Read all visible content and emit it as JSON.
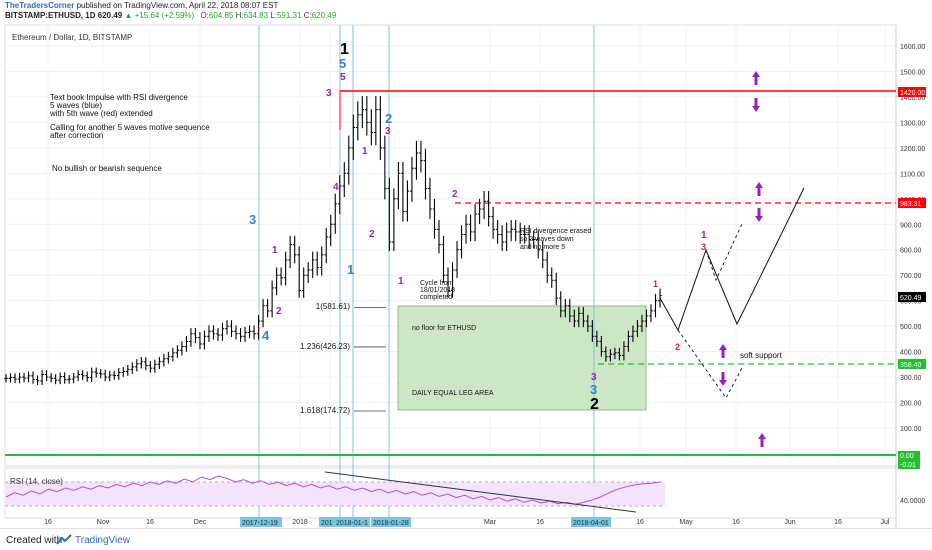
{
  "header": {
    "publisher": "TheTradersCorner",
    "published_text": "published on TradingView.com, April 22, 2018 08:07 EST",
    "symbol": "BITSTAMP:ETHUSD, 1D",
    "price": "620.49",
    "change": "▲ +15.64 (+2.59%)",
    "o_label": "O:",
    "o": "604.85",
    "h_label": "H:",
    "h": "634.83",
    "l_label": "L:",
    "l": "591.31",
    "c_label": "C:",
    "c": "620.49"
  },
  "chart_title": "Ethereum / Dollar, 1D, BITSTAMP",
  "colors": {
    "bars": "#000000",
    "red_line": "#ff0000",
    "green_line": "#00c000",
    "green_zone": "#cde6c5",
    "wave_blue": "#3d7fd1",
    "wave_purple": "#9a1fc0",
    "wave_red": "#e02020",
    "rsi_line": "#b04fd8",
    "rsi_band": "#f3e3fb",
    "vline": "#7cc4e0",
    "arrow": "#9a1fc0"
  },
  "chart_data": {
    "type": "ohlc",
    "title": "Ethereum / Dollar, 1D, BITSTAMP",
    "ylim": [
      0,
      1650
    ],
    "y_ticks": [
      100,
      200,
      300,
      400,
      500,
      600,
      700,
      800,
      900,
      1000,
      1100,
      1200,
      1300,
      1400,
      1500,
      1600
    ],
    "y_tick_labels": [
      "100.00",
      "200.00",
      "300.00",
      "400.00",
      "500.00",
      "600.00",
      "700.00",
      "800.00",
      "900.00",
      "1000.00",
      "1100.00",
      "1200.00",
      "1300.00",
      "1400.00",
      "1500.00",
      "1600.00"
    ],
    "x_labels": [
      "16",
      "Nov",
      "16",
      "Dec",
      "2018",
      "16",
      "Mar",
      "16",
      "16",
      "May",
      "16",
      "Jun",
      "16",
      "Jul"
    ],
    "x_highlight_labels": [
      "2017-12-19",
      "201",
      "2018-01-1",
      "2018-01-28",
      "2018-04-01"
    ],
    "price_series": [
      295,
      298,
      292,
      300,
      296,
      305,
      290,
      285,
      310,
      300,
      295,
      288,
      302,
      290,
      292,
      300,
      310,
      305,
      298,
      320,
      315,
      312,
      300,
      308,
      306,
      318,
      322,
      330,
      340,
      352,
      360,
      345,
      335,
      350,
      360,
      372,
      380,
      395,
      405,
      420,
      440,
      470,
      455,
      430,
      460,
      480,
      470,
      465,
      490,
      500,
      480,
      470,
      460,
      475,
      480,
      470,
      520,
      580,
      560,
      650,
      700,
      690,
      760,
      820,
      780,
      640,
      700,
      720,
      760,
      730,
      780,
      850,
      900,
      980,
      1050,
      1100,
      1200,
      1280,
      1330,
      1350,
      1300,
      1260,
      1350,
      1200,
      1040,
      830,
      1000,
      1100,
      950,
      1030,
      1120,
      1180,
      1150,
      1040,
      960,
      880,
      820,
      700,
      640,
      720,
      800,
      860,
      900,
      870,
      940,
      960,
      990,
      930,
      880,
      860,
      830,
      870,
      880,
      870,
      860,
      860,
      840,
      840,
      800,
      760,
      700,
      680,
      610,
      560,
      580,
      540,
      520,
      550,
      520,
      500,
      460,
      440,
      400,
      380,
      390,
      395,
      385,
      420,
      460,
      480,
      500,
      520,
      540,
      560,
      600,
      620
    ],
    "horizontal_lines": [
      {
        "label": "1420.00",
        "value": 1420,
        "style": "solid",
        "color": "red"
      },
      {
        "label": "983.31",
        "value": 983.31,
        "style": "dashed",
        "color": "red"
      },
      {
        "label": "358.40",
        "value": 358.4,
        "style": "dashed",
        "color": "green"
      },
      {
        "label": "0.00",
        "value": 0,
        "style": "solid",
        "color": "green"
      }
    ],
    "last_price_label": "620.49",
    "fib_levels": [
      {
        "label": "1(581.61)",
        "value": 581.61
      },
      {
        "label": "1.236(426.23)",
        "value": 426.23
      },
      {
        "label": "1.618(174.72)",
        "value": 174.72
      }
    ],
    "rsi": {
      "label": "RSI (14, close)",
      "tick": "40.0000",
      "band": [
        30,
        70
      ],
      "values": [
        45,
        52,
        48,
        55,
        50,
        58,
        54,
        60,
        56,
        62,
        58,
        64,
        60,
        66,
        62,
        68,
        64,
        70,
        66,
        72,
        68,
        75,
        70,
        78,
        74,
        80,
        76,
        70,
        74,
        68,
        72,
        66,
        70,
        64,
        68,
        62,
        66,
        60,
        64,
        58,
        62,
        56,
        60,
        54,
        58,
        52,
        56,
        50,
        54,
        48,
        52,
        46,
        50,
        44,
        48,
        42,
        46,
        40,
        44,
        38,
        42,
        36,
        40,
        35,
        38,
        34,
        36,
        33,
        36,
        40,
        45,
        52,
        58,
        62,
        65,
        67,
        68,
        70
      ]
    }
  },
  "annotations": {
    "wave_labels": [
      {
        "text": "1",
        "color": "black"
      },
      {
        "text": "5",
        "color": "blue"
      },
      {
        "text": "5",
        "color": "purple"
      },
      {
        "text": "3",
        "color": "purple"
      },
      {
        "text": "4",
        "color": "purple"
      },
      {
        "text": "1",
        "color": "purple"
      },
      {
        "text": "2",
        "color": "blue"
      },
      {
        "text": "3",
        "color": "purple"
      },
      {
        "text": "2",
        "color": "purple"
      },
      {
        "text": "1",
        "color": "blue"
      },
      {
        "text": "3",
        "color": "blue"
      },
      {
        "text": "1",
        "color": "purple"
      },
      {
        "text": "2",
        "color": "purple"
      },
      {
        "text": "4",
        "color": "blue"
      },
      {
        "text": "2",
        "color": "purple"
      },
      {
        "text": "1",
        "color": "purple"
      },
      {
        "text": "3",
        "color": "purple"
      },
      {
        "text": "3",
        "color": "blue"
      },
      {
        "text": "2",
        "color": "black"
      },
      {
        "text": "1",
        "color": "red"
      },
      {
        "text": "2",
        "color": "red"
      },
      {
        "text": "1",
        "color": "purple"
      },
      {
        "text": "3",
        "color": "red"
      }
    ],
    "notes": [
      "Text book Impulse with RSI divergence",
      "5 waves (blue)",
      "with 5th wave (red) extended",
      "Calling for another 5 waves motive sequence",
      "after correction",
      "No bullish or bearish sequence"
    ],
    "rsi_note": [
      "RSI divergence erased",
      "so 3 waves down",
      "and no more 5"
    ],
    "cycle_note": [
      "Cycle from",
      "18/01/2018",
      "completed"
    ],
    "zone_notes": [
      "no floor for ETHUSD",
      "DAILY EQUAL LEG AREA"
    ],
    "soft_support": "soft support"
  },
  "footer": {
    "created_with": "Created with",
    "brand": "TradingView"
  }
}
